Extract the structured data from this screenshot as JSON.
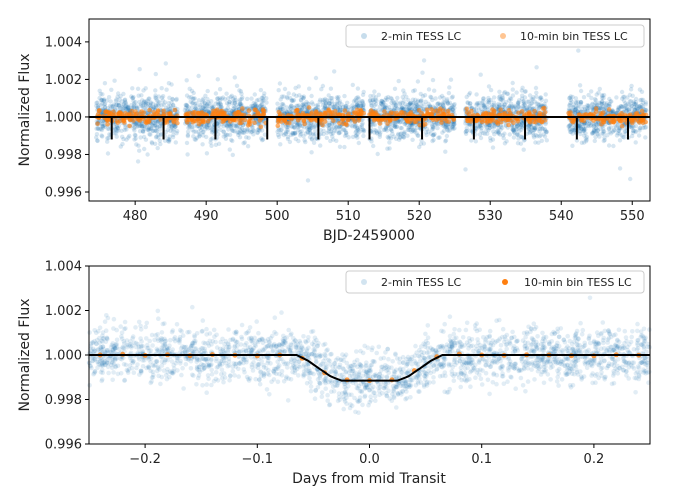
{
  "chart_data": [
    {
      "type": "scatter",
      "xlabel": "BJD-2459000",
      "ylabel": "Normalized Flux",
      "xlim": [
        473.5,
        552.5
      ],
      "ylim": [
        0.99552,
        1.00522
      ],
      "xticks": [
        480,
        490,
        500,
        510,
        520,
        530,
        540,
        550
      ],
      "xtick_labels": [
        "480",
        "490",
        "500",
        "510",
        "520",
        "530",
        "540",
        "550"
      ],
      "yticks": [
        0.996,
        0.998,
        1.0,
        1.002,
        1.004
      ],
      "ytick_labels": [
        "0.996",
        "0.998",
        "1.000",
        "1.002",
        "1.004"
      ],
      "legend": {
        "placement": "top-right",
        "entries": [
          "2-min TESS LC",
          "10-min bin TESS LC"
        ]
      },
      "grid": false,
      "observing_segments": [
        [
          474.5,
          486.0
        ],
        [
          487.0,
          498.5
        ],
        [
          500.0,
          512.3
        ],
        [
          513.0,
          525.0
        ],
        [
          526.5,
          538.0
        ],
        [
          541.0,
          552.0
        ]
      ],
      "transit_times": [
        476.7,
        484.0,
        491.3,
        498.6,
        505.8,
        513.0,
        520.4,
        527.7,
        534.9,
        542.2,
        549.4
      ],
      "transit_depth": 0.0012,
      "series": [
        {
          "name": "2-min TESS LC",
          "color": "#1f77b4",
          "baseline": 1.0,
          "scatter_sigma": 0.0006
        },
        {
          "name": "10-min bin TESS LC",
          "color": "#ff7f0e",
          "baseline": 1.0,
          "scatter_sigma": 0.00018
        },
        {
          "name": "model",
          "color": "#000000",
          "baseline": 1.0
        }
      ]
    },
    {
      "type": "scatter",
      "xlabel": "Days from mid Transit",
      "ylabel": "Normalized Flux",
      "xlim": [
        -0.25,
        0.25
      ],
      "ylim": [
        0.996,
        1.004
      ],
      "xticks": [
        -0.2,
        -0.1,
        0.0,
        0.1,
        0.2
      ],
      "xtick_labels": [
        "−0.2",
        "−0.1",
        "0.0",
        "0.1",
        "0.2"
      ],
      "yticks": [
        0.996,
        0.998,
        1.0,
        1.002,
        1.004
      ],
      "ytick_labels": [
        "0.996",
        "0.998",
        "1.000",
        "1.002",
        "1.004"
      ],
      "legend": {
        "placement": "top-right",
        "entries": [
          "2-min TESS LC",
          "10-min bin TESS LC"
        ]
      },
      "grid": false,
      "model_curve": {
        "x": [
          -0.25,
          -0.065,
          -0.055,
          -0.045,
          -0.035,
          -0.025,
          0.025,
          0.035,
          0.045,
          0.055,
          0.065,
          0.25
        ],
        "y": [
          1.0,
          1.0,
          0.99975,
          0.9994,
          0.99905,
          0.99885,
          0.99885,
          0.99905,
          0.9994,
          0.99975,
          1.0,
          1.0
        ]
      },
      "binned_points": {
        "x": [
          -0.24,
          -0.22,
          -0.2,
          -0.18,
          -0.16,
          -0.14,
          -0.12,
          -0.1,
          -0.08,
          -0.06,
          -0.04,
          -0.02,
          0.0,
          0.02,
          0.04,
          0.06,
          0.08,
          0.1,
          0.12,
          0.14,
          0.16,
          0.18,
          0.2,
          0.22,
          0.24
        ],
        "y": [
          1.0,
          1.00003,
          0.99998,
          1.00001,
          0.99997,
          1.00002,
          0.99999,
          0.99996,
          1.0,
          0.99985,
          0.9992,
          0.99888,
          0.99885,
          0.99888,
          0.9993,
          0.99992,
          1.00004,
          1.0,
          0.99998,
          1.00001,
          1.0,
          0.99997,
          0.99996,
          1.00001,
          0.99999
        ]
      },
      "series": [
        {
          "name": "2-min TESS LC",
          "color": "#1f77b4",
          "scatter_sigma": 0.0006
        },
        {
          "name": "10-min bin TESS LC",
          "color": "#ff7f0e"
        },
        {
          "name": "model",
          "color": "#000000"
        }
      ]
    }
  ]
}
